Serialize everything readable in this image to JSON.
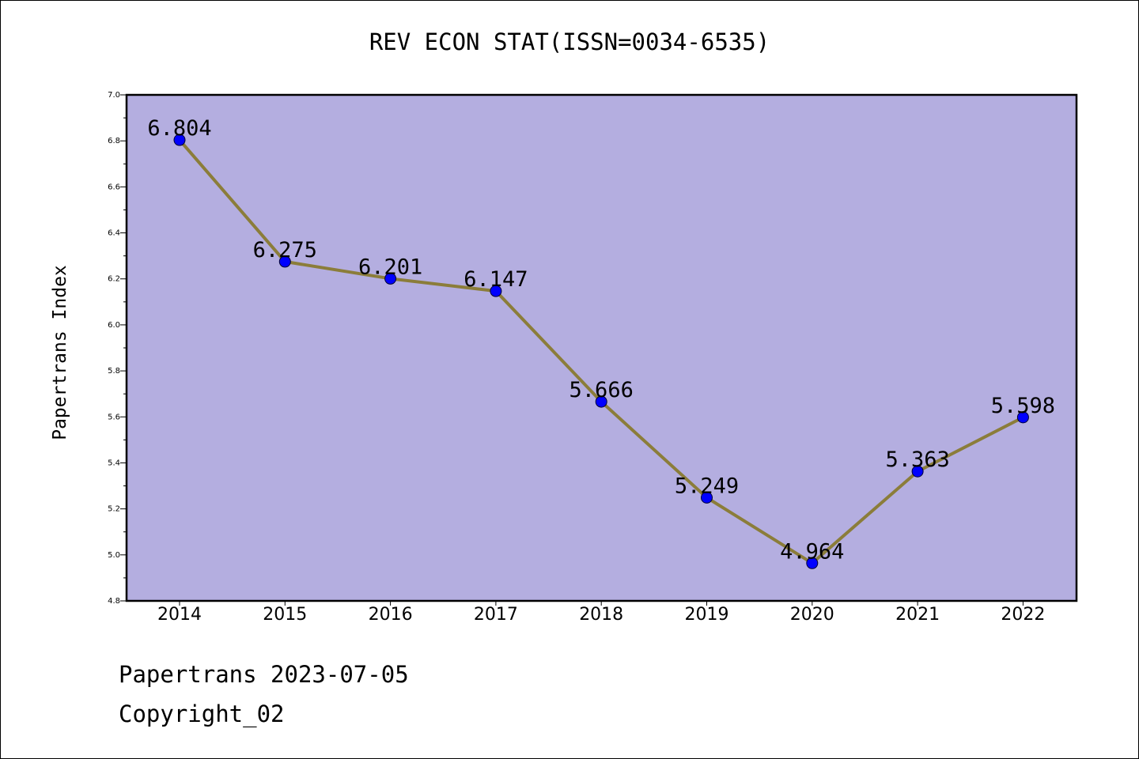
{
  "chart_data": {
    "type": "line",
    "title": "REV ECON STAT(ISSN=0034-6535)",
    "xlabel": "",
    "ylabel": "Papertrans Index",
    "categories": [
      "2014",
      "2015",
      "2016",
      "2017",
      "2018",
      "2019",
      "2020",
      "2021",
      "2022"
    ],
    "series": [
      {
        "values": [
          6.804,
          6.275,
          6.201,
          6.147,
          5.666,
          5.249,
          4.964,
          5.363,
          5.598
        ],
        "labels": [
          "6.804",
          "6.275",
          "6.201",
          "6.147",
          "5.666",
          "5.249",
          "4.964",
          "5.363",
          "5.598"
        ],
        "line_color": "#8b7d3a",
        "marker_color": "#0000ff"
      }
    ],
    "ylim": [
      4.8,
      7.0
    ],
    "yticks": [
      "4.8",
      "5.0",
      "5.2",
      "5.4",
      "5.6",
      "5.8",
      "6.0",
      "6.2",
      "6.4",
      "6.6",
      "6.8",
      "7.0"
    ],
    "plot_background": "#b4aee0",
    "grid": false,
    "legend": "none"
  },
  "footer": {
    "date_line": "Papertrans 2023-07-05",
    "copyright_line": "Copyright_02"
  }
}
